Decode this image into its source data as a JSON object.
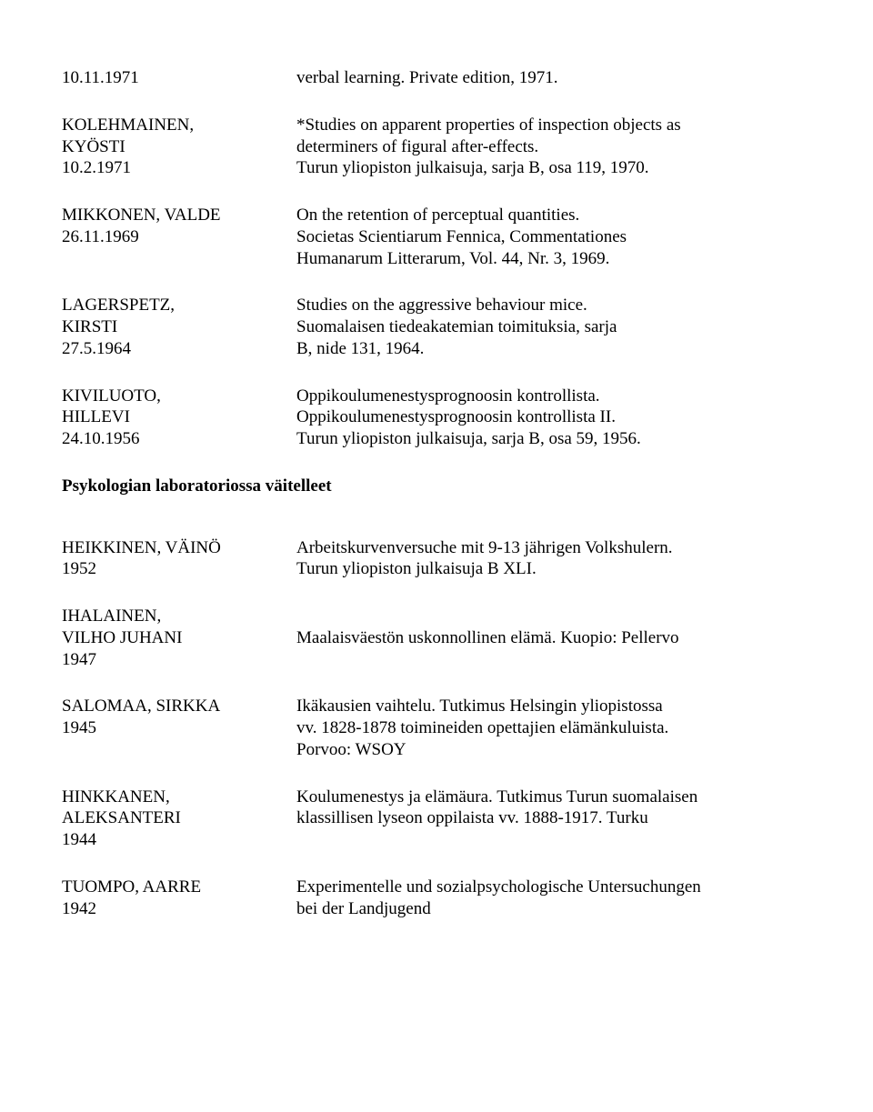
{
  "entries1": [
    {
      "left": [
        "10.11.1971"
      ],
      "right": [
        "verbal learning. Private edition, 1971."
      ]
    },
    {
      "left": [
        "KOLEHMAINEN,",
        "KYÖSTI",
        "10.2.1971"
      ],
      "right": [
        "*Studies on apparent properties of inspection objects as",
        "determiners of figural after-effects.",
        "Turun yliopiston julkaisuja, sarja B, osa 119, 1970."
      ]
    },
    {
      "left": [
        "MIKKONEN, VALDE",
        "26.11.1969"
      ],
      "right": [
        "On the retention of perceptual quantities.",
        "Societas Scientiarum Fennica, Commentationes",
        "Humanarum Litterarum, Vol. 44, Nr. 3, 1969."
      ]
    },
    {
      "left": [
        "LAGERSPETZ,",
        "KIRSTI",
        "27.5.1964"
      ],
      "right": [
        "Studies on the aggressive behaviour mice.",
        "Suomalaisen tiedeakatemian toimituksia, sarja",
        "B, nide 131, 1964."
      ]
    },
    {
      "left": [
        "KIVILUOTO,",
        "HILLEVI",
        "24.10.1956"
      ],
      "right": [
        "Oppikoulumenestysprognoosin kontrollista.",
        "Oppikoulumenestysprognoosin kontrollista II.",
        "Turun yliopiston julkaisuja, sarja B, osa 59, 1956."
      ]
    }
  ],
  "section_heading": "Psykologian laboratoriossa väitelleet",
  "entries2": [
    {
      "left": [
        "HEIKKINEN, VÄINÖ",
        "1952"
      ],
      "right": [
        "Arbeitskurvenversuche mit 9-13 jährigen Volkshulern.",
        "Turun yliopiston julkaisuja B XLI."
      ]
    },
    {
      "left": [
        "IHALAINEN,",
        "VILHO JUHANI",
        "1947"
      ],
      "right": [
        "",
        "Maalaisväestön uskonnollinen elämä. Kuopio: Pellervo"
      ]
    },
    {
      "left": [
        "SALOMAA, SIRKKA",
        "1945"
      ],
      "right": [
        "Ikäkausien vaihtelu. Tutkimus Helsingin yliopistossa",
        "vv. 1828-1878 toimineiden opettajien elämänkuluista.",
        "Porvoo: WSOY"
      ]
    },
    {
      "left": [
        "HINKKANEN,",
        "ALEKSANTERI",
        "1944"
      ],
      "right": [
        "Koulumenestys ja elämäura. Tutkimus Turun suomalaisen",
        "klassillisen lyseon oppilaista vv. 1888-1917. Turku"
      ]
    },
    {
      "left": [
        "TUOMPO, AARRE",
        "1942"
      ],
      "right": [
        "Experimentelle und sozialpsychologische Untersuchungen",
        "bei der Landjugend"
      ]
    }
  ]
}
